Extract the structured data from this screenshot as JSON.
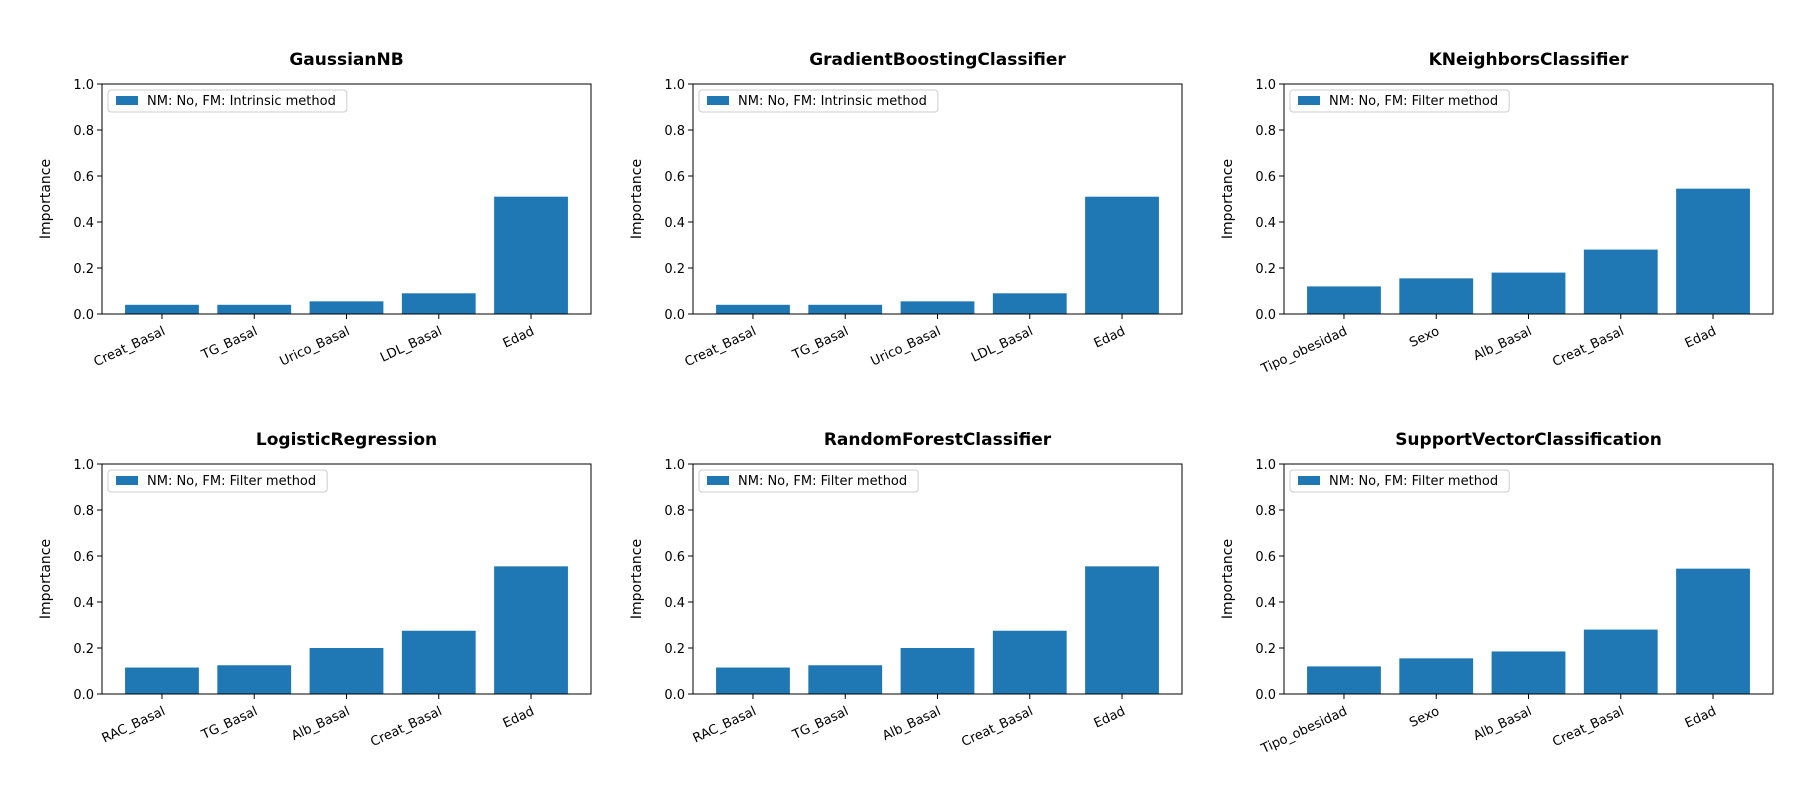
{
  "colors": {
    "bar": "#1f77b4",
    "axis": "#000000",
    "legend_border": "#cccccc"
  },
  "chart_data": [
    {
      "type": "bar",
      "title": "GaussianNB",
      "ylabel": "Importance",
      "ylim": [
        0,
        1.0
      ],
      "yticks": [
        0.0,
        0.2,
        0.4,
        0.6,
        0.8,
        1.0
      ],
      "legend": "NM: No, FM: Intrinsic method",
      "legend_position": "top-left",
      "categories": [
        "Creat_Basal",
        "TG_Basal",
        "Urico_Basal",
        "LDL_Basal",
        "Edad"
      ],
      "values": [
        0.04,
        0.04,
        0.055,
        0.09,
        0.51
      ]
    },
    {
      "type": "bar",
      "title": "GradientBoostingClassifier",
      "ylabel": "Importance",
      "ylim": [
        0,
        1.0
      ],
      "yticks": [
        0.0,
        0.2,
        0.4,
        0.6,
        0.8,
        1.0
      ],
      "legend": "NM: No, FM: Intrinsic method",
      "legend_position": "top-left",
      "categories": [
        "Creat_Basal",
        "TG_Basal",
        "Urico_Basal",
        "LDL_Basal",
        "Edad"
      ],
      "values": [
        0.04,
        0.04,
        0.055,
        0.09,
        0.51
      ]
    },
    {
      "type": "bar",
      "title": "KNeighborsClassifier",
      "ylabel": "Importance",
      "ylim": [
        0,
        1.0
      ],
      "yticks": [
        0.0,
        0.2,
        0.4,
        0.6,
        0.8,
        1.0
      ],
      "legend": "NM: No, FM: Filter method",
      "legend_position": "top-left",
      "categories": [
        "Tipo_obesidad",
        "Sexo",
        "Alb_Basal",
        "Creat_Basal",
        "Edad"
      ],
      "values": [
        0.12,
        0.155,
        0.18,
        0.28,
        0.545
      ]
    },
    {
      "type": "bar",
      "title": "LogisticRegression",
      "ylabel": "Importance",
      "ylim": [
        0,
        1.0
      ],
      "yticks": [
        0.0,
        0.2,
        0.4,
        0.6,
        0.8,
        1.0
      ],
      "legend": "NM: No, FM: Filter method",
      "legend_position": "top-left",
      "categories": [
        "RAC_Basal",
        "TG_Basal",
        "Alb_Basal",
        "Creat_Basal",
        "Edad"
      ],
      "values": [
        0.115,
        0.125,
        0.2,
        0.275,
        0.555
      ]
    },
    {
      "type": "bar",
      "title": "RandomForestClassifier",
      "ylabel": "Importance",
      "ylim": [
        0,
        1.0
      ],
      "yticks": [
        0.0,
        0.2,
        0.4,
        0.6,
        0.8,
        1.0
      ],
      "legend": "NM: No, FM: Filter method",
      "legend_position": "top-left",
      "categories": [
        "RAC_Basal",
        "TG_Basal",
        "Alb_Basal",
        "Creat_Basal",
        "Edad"
      ],
      "values": [
        0.115,
        0.125,
        0.2,
        0.275,
        0.555
      ]
    },
    {
      "type": "bar",
      "title": "SupportVectorClassification",
      "ylabel": "Importance",
      "ylim": [
        0,
        1.0
      ],
      "yticks": [
        0.0,
        0.2,
        0.4,
        0.6,
        0.8,
        1.0
      ],
      "legend": "NM: No, FM: Filter method",
      "legend_position": "top-left",
      "categories": [
        "Tipo_obesidad",
        "Sexo",
        "Alb_Basal",
        "Creat_Basal",
        "Edad"
      ],
      "values": [
        0.12,
        0.155,
        0.185,
        0.28,
        0.545
      ]
    }
  ]
}
